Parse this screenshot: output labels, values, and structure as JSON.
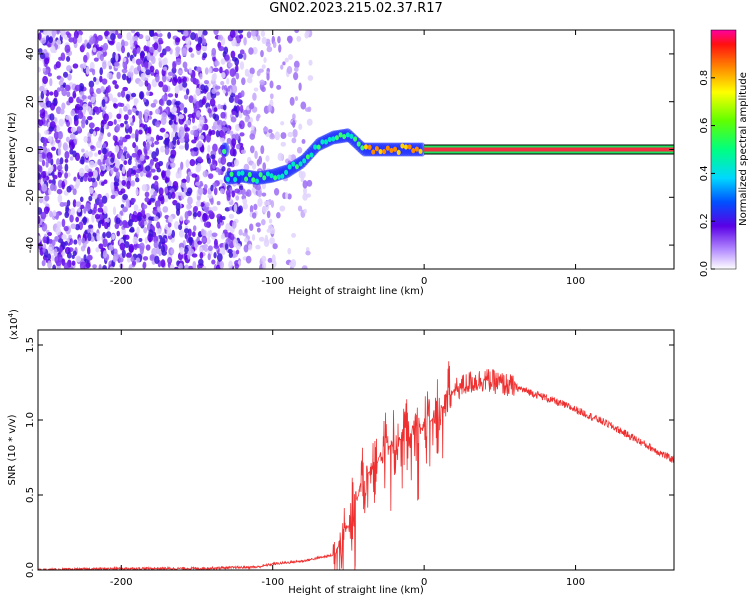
{
  "title": "GN02.2023.215.02.37.R17",
  "charts": {
    "spectrogram": {
      "xlabel": "Height of straight line (km)",
      "ylabel": "Frequency (Hz)",
      "xlim": [
        -255,
        165
      ],
      "ylim": [
        -50,
        50
      ],
      "xticks": [
        -200,
        -100,
        0,
        100
      ],
      "yticks": [
        -40,
        -20,
        0,
        20,
        40
      ],
      "colorbar": {
        "label": "Normalized spectral amplitude",
        "range": [
          0,
          1
        ],
        "ticks": [
          "0.0",
          "0.2",
          "0.4",
          "0.6",
          "0.8"
        ]
      }
    },
    "snr": {
      "xlabel": "Height of straight line (km)",
      "ylabel": "SNR (10 * v/v)",
      "multiplier": "(x10",
      "multiplier_exp": "4",
      "multiplier_close": ")",
      "xlim": [
        -255,
        165
      ],
      "ylim": [
        0,
        1.6
      ],
      "xticks": [
        -200,
        -100,
        0,
        100
      ],
      "yticks": [
        "0.0",
        "0.5",
        "1.0",
        "1.5"
      ],
      "color": "#ee3030"
    }
  },
  "chart_data": [
    {
      "type": "heatmap",
      "title": "GN02.2023.215.02.37.R17",
      "xlabel": "Height of straight line (km)",
      "ylabel": "Frequency (Hz)",
      "xlim": [
        -255,
        165
      ],
      "ylim": [
        -50,
        50
      ],
      "color_range": [
        0,
        1
      ],
      "colorbar_label": "Normalized spectral amplitude",
      "dominant_frequency_track": {
        "x": [
          -130,
          -120,
          -110,
          -100,
          -90,
          -80,
          -70,
          -60,
          -50,
          -40,
          -30,
          -20,
          -10,
          0,
          165
        ],
        "y": [
          -12,
          -11,
          -12,
          -11,
          -9,
          -5,
          2,
          5,
          6,
          0,
          0,
          0,
          0,
          0,
          0
        ]
      }
    },
    {
      "type": "line",
      "xlabel": "Height of straight line (km)",
      "ylabel": "SNR (10 * v/v)",
      "xlim": [
        -255,
        165
      ],
      "ylim": [
        0,
        1.6
      ],
      "y_multiplier": 10000,
      "series": [
        {
          "x": [
            -255,
            -200,
            -150,
            -110,
            -100,
            -80,
            -60,
            -50,
            -40,
            -30,
            -20,
            -10,
            0,
            10,
            20,
            30,
            40,
            60,
            80,
            100,
            120,
            140,
            165
          ],
          "values": [
            0.0,
            0.01,
            0.01,
            0.02,
            0.04,
            0.06,
            0.1,
            0.3,
            0.6,
            0.75,
            0.85,
            0.9,
            0.95,
            1.05,
            1.2,
            1.25,
            1.27,
            1.22,
            1.15,
            1.07,
            0.98,
            0.87,
            0.73
          ]
        }
      ]
    }
  ]
}
